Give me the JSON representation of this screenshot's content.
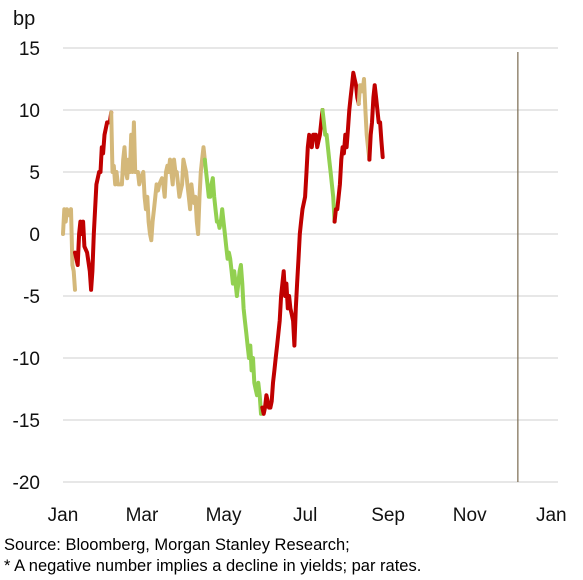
{
  "chart_data": {
    "type": "line",
    "ylabel": "bp",
    "ylim": [
      -20,
      15
    ],
    "yticks": [
      15,
      10,
      5,
      0,
      -5,
      -10,
      -15,
      -20
    ],
    "xlim": [
      0,
      370
    ],
    "xticks": [
      {
        "label": "Jan",
        "x": 0
      },
      {
        "label": "Mar",
        "x": 59
      },
      {
        "label": "May",
        "x": 120
      },
      {
        "label": "Jul",
        "x": 181
      },
      {
        "label": "Sep",
        "x": 243
      },
      {
        "label": "Nov",
        "x": 304
      },
      {
        "label": "Jan",
        "x": 365
      }
    ],
    "grid": "horizontal",
    "marker_x": 340,
    "colors": {
      "tan": "#D4B87A",
      "red": "#C00000",
      "green": "#92D050",
      "grid": "#cfcfcf",
      "marker": "#7a6a50"
    },
    "segments": [
      {
        "color": "tan",
        "points": [
          [
            0,
            0
          ],
          [
            1,
            2
          ],
          [
            2,
            1
          ],
          [
            3,
            2
          ],
          [
            5,
            1.5
          ],
          [
            6,
            2
          ],
          [
            7,
            -2.5
          ],
          [
            8,
            -3
          ],
          [
            9,
            -4.5
          ]
        ]
      },
      {
        "color": "red",
        "points": [
          [
            9,
            -1.5
          ],
          [
            10,
            -2
          ],
          [
            11,
            -2.5
          ],
          [
            12,
            0
          ],
          [
            13,
            1
          ],
          [
            14,
            0
          ],
          [
            15,
            1
          ],
          [
            16,
            -1
          ],
          [
            18,
            -1.5
          ],
          [
            20,
            -3
          ],
          [
            21,
            -4.5
          ],
          [
            22,
            -3
          ],
          [
            23,
            0
          ],
          [
            24,
            2
          ],
          [
            25,
            4
          ],
          [
            27,
            5
          ],
          [
            28,
            5
          ],
          [
            29,
            7
          ],
          [
            30,
            6.5
          ],
          [
            31,
            8
          ],
          [
            33,
            9
          ],
          [
            35,
            9
          ],
          [
            36,
            9.8
          ]
        ]
      },
      {
        "color": "tan",
        "points": [
          [
            36,
            9.8
          ],
          [
            37,
            5
          ],
          [
            38,
            5.5
          ],
          [
            39,
            4
          ],
          [
            40,
            5
          ],
          [
            41,
            4
          ],
          [
            42,
            4
          ],
          [
            44,
            4
          ],
          [
            45,
            6
          ],
          [
            46,
            7
          ],
          [
            47,
            5
          ],
          [
            48,
            4.5
          ],
          [
            49,
            6
          ],
          [
            50,
            5
          ],
          [
            51,
            8
          ],
          [
            52,
            5
          ],
          [
            53,
            9
          ],
          [
            54,
            5
          ],
          [
            56,
            5
          ],
          [
            57,
            4
          ],
          [
            58,
            4.5
          ],
          [
            60,
            5
          ],
          [
            61,
            3
          ],
          [
            62,
            2
          ],
          [
            63,
            3
          ],
          [
            64,
            1
          ],
          [
            65,
            0
          ],
          [
            66,
            -0.5
          ],
          [
            67,
            1
          ],
          [
            68,
            2
          ],
          [
            69,
            3
          ],
          [
            70,
            4
          ],
          [
            71,
            3.5
          ],
          [
            72,
            4
          ],
          [
            74,
            4.5
          ],
          [
            75,
            4
          ],
          [
            76,
            3
          ],
          [
            77,
            5
          ],
          [
            78,
            5.5
          ],
          [
            79,
            5
          ],
          [
            80,
            6
          ],
          [
            81,
            5
          ],
          [
            82,
            4
          ],
          [
            83,
            6
          ],
          [
            84,
            5
          ],
          [
            85,
            5
          ],
          [
            86,
            4
          ],
          [
            87,
            3
          ],
          [
            88,
            3.5
          ],
          [
            89,
            4
          ],
          [
            90,
            6
          ],
          [
            91,
            5.5
          ],
          [
            92,
            5
          ],
          [
            93,
            4
          ],
          [
            94,
            3
          ],
          [
            95,
            2
          ],
          [
            96,
            4
          ],
          [
            97,
            3
          ],
          [
            98,
            2.5
          ],
          [
            99,
            3
          ],
          [
            100,
            1
          ],
          [
            101,
            0
          ],
          [
            102,
            3
          ],
          [
            103,
            5
          ],
          [
            104,
            6
          ],
          [
            105,
            7
          ],
          [
            106,
            6
          ]
        ]
      },
      {
        "color": "green",
        "points": [
          [
            106,
            6
          ],
          [
            107,
            5
          ],
          [
            108,
            4
          ],
          [
            109,
            3
          ],
          [
            110,
            3
          ],
          [
            111,
            4
          ],
          [
            112,
            4.5
          ],
          [
            113,
            3
          ],
          [
            114,
            2
          ],
          [
            115,
            1
          ],
          [
            116,
            1
          ],
          [
            117,
            0.5
          ],
          [
            118,
            1
          ],
          [
            119,
            2
          ],
          [
            120,
            1
          ],
          [
            121,
            0
          ],
          [
            122,
            -1
          ],
          [
            123,
            -2
          ],
          [
            124,
            -1.5
          ],
          [
            125,
            -2
          ],
          [
            126,
            -3
          ],
          [
            127,
            -4
          ],
          [
            128,
            -3
          ],
          [
            129,
            -4
          ],
          [
            130,
            -5
          ],
          [
            131,
            -4
          ],
          [
            132,
            -3
          ],
          [
            133,
            -2.5
          ],
          [
            134,
            -4
          ],
          [
            135,
            -6
          ],
          [
            136,
            -7
          ],
          [
            137,
            -8
          ],
          [
            138,
            -9
          ],
          [
            139,
            -10
          ],
          [
            140,
            -9
          ],
          [
            141,
            -11
          ],
          [
            142,
            -10
          ],
          [
            143,
            -12
          ],
          [
            144,
            -12.5
          ],
          [
            145,
            -13
          ],
          [
            146,
            -12
          ],
          [
            147,
            -13
          ],
          [
            148,
            -14.5
          ],
          [
            149,
            -14
          ]
        ]
      },
      {
        "color": "red",
        "points": [
          [
            149,
            -14
          ],
          [
            150,
            -14.5
          ],
          [
            151,
            -14
          ],
          [
            152,
            -13
          ],
          [
            153,
            -13.5
          ],
          [
            154,
            -14
          ],
          [
            155,
            -14
          ],
          [
            156,
            -13.5
          ],
          [
            157,
            -12
          ],
          [
            158,
            -11
          ],
          [
            159,
            -10
          ],
          [
            160,
            -9
          ],
          [
            161,
            -8
          ],
          [
            162,
            -7
          ],
          [
            163,
            -5
          ],
          [
            164,
            -4
          ],
          [
            165,
            -3
          ],
          [
            166,
            -5
          ],
          [
            167,
            -4
          ],
          [
            168,
            -6
          ],
          [
            169,
            -5
          ],
          [
            170,
            -6
          ],
          [
            171,
            -6.5
          ],
          [
            172,
            -7
          ],
          [
            173,
            -9
          ],
          [
            174,
            -6
          ],
          [
            175,
            -4
          ],
          [
            176,
            -2
          ],
          [
            177,
            0
          ],
          [
            178,
            1
          ],
          [
            179,
            2
          ],
          [
            180,
            2.5
          ],
          [
            181,
            3
          ],
          [
            182,
            5
          ],
          [
            183,
            7
          ],
          [
            184,
            8
          ],
          [
            185,
            7.5
          ],
          [
            186,
            7
          ],
          [
            187,
            8
          ],
          [
            189,
            8
          ],
          [
            190,
            7
          ],
          [
            191,
            7.5
          ],
          [
            192,
            8
          ],
          [
            193,
            9
          ],
          [
            194,
            10
          ]
        ]
      },
      {
        "color": "green",
        "points": [
          [
            194,
            10
          ],
          [
            195,
            9
          ],
          [
            196,
            8
          ],
          [
            197,
            8
          ],
          [
            198,
            7
          ],
          [
            199,
            6
          ],
          [
            200,
            5
          ],
          [
            201,
            4
          ],
          [
            202,
            3
          ],
          [
            203,
            1
          ]
        ]
      },
      {
        "color": "red",
        "points": [
          [
            203,
            1
          ],
          [
            204,
            2
          ],
          [
            205,
            2
          ],
          [
            206,
            3
          ],
          [
            207,
            4
          ],
          [
            208,
            6
          ],
          [
            209,
            7
          ],
          [
            210,
            6.5
          ],
          [
            211,
            8
          ],
          [
            212,
            7
          ],
          [
            213,
            8.5
          ],
          [
            214,
            10
          ],
          [
            215,
            11
          ],
          [
            216,
            12
          ],
          [
            217,
            13
          ],
          [
            218,
            12.5
          ],
          [
            219,
            12
          ],
          [
            220,
            11
          ],
          [
            221,
            10.5
          ]
        ]
      },
      {
        "color": "tan",
        "points": [
          [
            221,
            10.5
          ],
          [
            222,
            12
          ],
          [
            223,
            12
          ],
          [
            224,
            11.5
          ],
          [
            225,
            12.5
          ],
          [
            226,
            10
          ],
          [
            227,
            8
          ],
          [
            228,
            7
          ],
          [
            229,
            6
          ]
        ]
      },
      {
        "color": "red",
        "points": [
          [
            229,
            6
          ],
          [
            230,
            8
          ],
          [
            231,
            9
          ],
          [
            232,
            11
          ],
          [
            233,
            12
          ],
          [
            234,
            11
          ],
          [
            235,
            10
          ],
          [
            236,
            9
          ],
          [
            237,
            9
          ],
          [
            238,
            7.5
          ],
          [
            239,
            6.2
          ]
        ]
      }
    ]
  },
  "footer": {
    "source": "Source: Bloomberg, Morgan Stanley Research;",
    "note": "* A negative number implies a decline in yields; par rates."
  }
}
